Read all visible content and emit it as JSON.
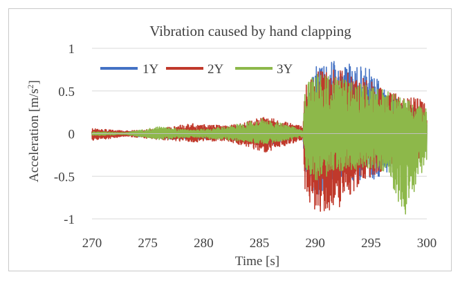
{
  "chart_data": {
    "type": "line",
    "title": "Vibration caused by hand clapping",
    "xlabel": "Time [s]",
    "ylabel_main": "Acceleration [m/s",
    "ylabel_sup": "2",
    "ylabel_end": "]",
    "xlim": [
      270,
      300
    ],
    "ylim": [
      -1,
      1
    ],
    "x_ticks": [
      270,
      275,
      280,
      285,
      290,
      295,
      300
    ],
    "x_tick_labels": [
      "270",
      "275",
      "280",
      "285",
      "290",
      "295",
      "300"
    ],
    "y_ticks": [
      1,
      0.5,
      0,
      -0.5,
      -1
    ],
    "y_tick_labels": [
      "1",
      "0.5",
      "0",
      "-0.5",
      "-1"
    ],
    "grid": "horizontal",
    "legend_position": "top-left",
    "series": [
      {
        "name": "1Y",
        "color": "#4472C4",
        "envelope": [
          {
            "t": 270.0,
            "max": 0.03,
            "min": -0.03
          },
          {
            "t": 271.0,
            "max": 0.03,
            "min": -0.04
          },
          {
            "t": 273.0,
            "max": 0.02,
            "min": -0.02
          },
          {
            "t": 276.0,
            "max": 0.05,
            "min": -0.06
          },
          {
            "t": 279.0,
            "max": 0.06,
            "min": -0.07
          },
          {
            "t": 282.0,
            "max": 0.07,
            "min": -0.06
          },
          {
            "t": 285.5,
            "max": 0.12,
            "min": -0.14
          },
          {
            "t": 288.9,
            "max": 0.05,
            "min": -0.05
          },
          {
            "t": 289.1,
            "max": 0.45,
            "min": -0.45
          },
          {
            "t": 290.0,
            "max": 0.82,
            "min": -0.75
          },
          {
            "t": 292.0,
            "max": 0.85,
            "min": -0.55
          },
          {
            "t": 295.0,
            "max": 0.75,
            "min": -0.55
          },
          {
            "t": 296.5,
            "max": 0.45,
            "min": -0.45
          },
          {
            "t": 300.0,
            "max": 0.25,
            "min": -0.25
          }
        ]
      },
      {
        "name": "2Y",
        "color": "#C0392B",
        "envelope": [
          {
            "t": 270.0,
            "max": 0.06,
            "min": -0.08
          },
          {
            "t": 271.0,
            "max": 0.05,
            "min": -0.07
          },
          {
            "t": 273.0,
            "max": 0.03,
            "min": -0.03
          },
          {
            "t": 276.0,
            "max": 0.06,
            "min": -0.07
          },
          {
            "t": 279.0,
            "max": 0.12,
            "min": -0.1
          },
          {
            "t": 282.0,
            "max": 0.09,
            "min": -0.08
          },
          {
            "t": 285.5,
            "max": 0.2,
            "min": -0.22
          },
          {
            "t": 288.9,
            "max": 0.08,
            "min": -0.07
          },
          {
            "t": 289.1,
            "max": 0.55,
            "min": -0.7
          },
          {
            "t": 290.0,
            "max": 0.72,
            "min": -0.92
          },
          {
            "t": 292.0,
            "max": 0.75,
            "min": -0.88
          },
          {
            "t": 295.0,
            "max": 0.62,
            "min": -0.5
          },
          {
            "t": 296.5,
            "max": 0.5,
            "min": -0.4
          },
          {
            "t": 300.0,
            "max": 0.38,
            "min": -0.3
          }
        ]
      },
      {
        "name": "3Y",
        "color": "#8DB84A",
        "envelope": [
          {
            "t": 270.0,
            "max": 0.02,
            "min": -0.02
          },
          {
            "t": 271.0,
            "max": 0.02,
            "min": -0.02
          },
          {
            "t": 273.0,
            "max": 0.01,
            "min": -0.01
          },
          {
            "t": 276.0,
            "max": 0.08,
            "min": -0.07
          },
          {
            "t": 279.0,
            "max": 0.04,
            "min": -0.04
          },
          {
            "t": 282.0,
            "max": 0.08,
            "min": -0.07
          },
          {
            "t": 285.5,
            "max": 0.18,
            "min": -0.12
          },
          {
            "t": 288.9,
            "max": 0.04,
            "min": -0.04
          },
          {
            "t": 289.1,
            "max": 0.55,
            "min": -0.4
          },
          {
            "t": 290.0,
            "max": 0.7,
            "min": -0.55
          },
          {
            "t": 292.0,
            "max": 0.65,
            "min": -0.45
          },
          {
            "t": 295.0,
            "max": 0.55,
            "min": -0.4
          },
          {
            "t": 296.5,
            "max": 0.5,
            "min": -0.45
          },
          {
            "t": 298.0,
            "max": 0.4,
            "min": -1.0
          },
          {
            "t": 300.0,
            "max": 0.3,
            "min": -0.3
          }
        ]
      }
    ]
  }
}
